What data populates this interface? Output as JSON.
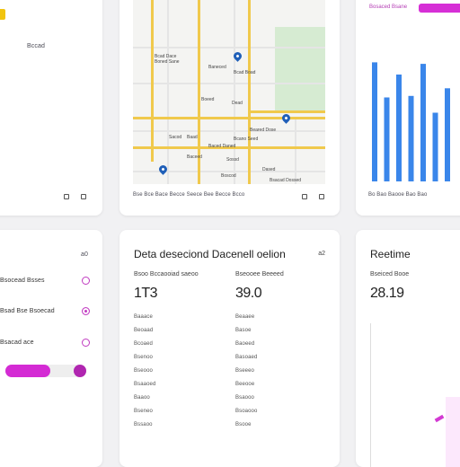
{
  "left_top": {
    "label": "Bccad"
  },
  "map": {
    "labels": [
      "Bcad Dace",
      "Boned Sane",
      "Baneced",
      "Bcad Boad",
      "Boeed",
      "Dead",
      "Beared Dose",
      "Bcano Seed",
      "Sacod",
      "Baad",
      "Baced Daned",
      "Sossd",
      "Dased",
      "Boscod",
      "Baceed",
      "Bsacad Dossed"
    ],
    "footer": "Bse Bce Bace Becce Seece Bee Becce Bcco",
    "colors": {
      "major_road": "#f0c94c",
      "park": "#d6ebd2",
      "pin": "#1f5fb8"
    }
  },
  "chart_top": {
    "header": "Bosaced Bsane",
    "footer": "Bo Bao Baooe Bao Bao"
  },
  "chart_data": {
    "type": "bar",
    "values": [
      78,
      55,
      70,
      56,
      77,
      45,
      61
    ],
    "ylim": [
      0,
      100
    ],
    "color": "#3a86ea"
  },
  "left_bottom": {
    "corner": "a0",
    "items": [
      {
        "label": "Bsocead Bsses",
        "selected": false
      },
      {
        "label": "Bsad Bse Bsoecad",
        "selected": true
      },
      {
        "label": "Bsacad ace",
        "selected": false
      }
    ],
    "slider_fraction": 0.55
  },
  "table": {
    "title": "Deta deseciond Dacenell oelion",
    "corner": "a2",
    "columns": [
      {
        "header": "Bsoo Bccaooiad saeoo",
        "value": "1T3",
        "rows": [
          "Baaace",
          "Beoaad",
          "Bcoaed",
          "Bsenoo",
          "Bseooo",
          "Bsaaoed",
          "Baaoo",
          "Bseneo",
          "Bssaoo"
        ]
      },
      {
        "header": "Bseooee Beeeed",
        "value": "39.0",
        "rows": [
          "Beaaee",
          "Basoe",
          "Baoeed",
          "Basoaed",
          "Bseeeo",
          "Beeooe",
          "Bsaooo",
          "Bsoaooo",
          "Bsooe"
        ]
      }
    ]
  },
  "realtime": {
    "title": "Reetime",
    "subtitle": "Bseiced Booe",
    "value": "28.19"
  }
}
